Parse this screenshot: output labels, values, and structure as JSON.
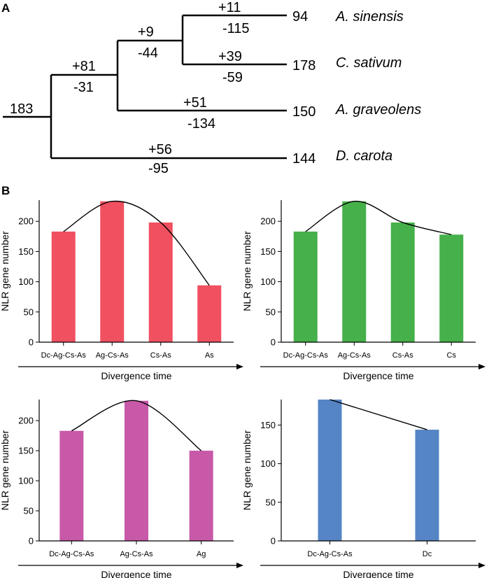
{
  "panel_labels": {
    "a": "A",
    "b": "B"
  },
  "tree": {
    "root_count": "183",
    "branch_ag_cs_as": {
      "gain": "+81",
      "loss": "-31"
    },
    "branch_cs_as": {
      "gain": "+9",
      "loss": "-44"
    },
    "leaves": [
      {
        "gain": "+11",
        "loss": "-115",
        "count": "94",
        "species": "A. sinensis"
      },
      {
        "gain": "+39",
        "loss": "-59",
        "count": "178",
        "species": "C. sativum"
      },
      {
        "gain": "+51",
        "loss": "-134",
        "count": "150",
        "species": "A. graveolens"
      },
      {
        "gain": "+56",
        "loss": "-95",
        "count": "144",
        "species": "D. carota"
      }
    ]
  },
  "colors": {
    "as": "#f05060",
    "cs": "#46b04a",
    "ag": "#c858a8",
    "dc": "#5585c5",
    "line": "#000000"
  },
  "chart_data": [
    {
      "type": "bar",
      "categories": [
        "Dc-Ag-Cs-As",
        "Ag-Cs-As",
        "Cs-As",
        "As"
      ],
      "values": [
        183,
        233,
        198,
        94
      ],
      "ylabel": "NLR gene number",
      "xlabel": "Divergence time",
      "ylim": [
        0,
        235
      ],
      "yticks": [
        0,
        50,
        100,
        150,
        200
      ],
      "color_key": "as",
      "trend_line": "smooth"
    },
    {
      "type": "bar",
      "categories": [
        "Dc-Ag-Cs-As",
        "Ag-Cs-As",
        "Cs-As",
        "Cs"
      ],
      "values": [
        183,
        233,
        198,
        178
      ],
      "ylabel": "NLR gene number",
      "xlabel": "Divergence time",
      "ylim": [
        0,
        235
      ],
      "yticks": [
        0,
        50,
        100,
        150,
        200
      ],
      "color_key": "cs",
      "trend_line": "smooth"
    },
    {
      "type": "bar",
      "categories": [
        "Dc-Ag-Cs-As",
        "Ag-Cs-As",
        "Ag"
      ],
      "values": [
        183,
        233,
        150
      ],
      "ylabel": "NLR gene number",
      "xlabel": "Divergence time",
      "ylim": [
        0,
        235
      ],
      "yticks": [
        0,
        50,
        100,
        150,
        200
      ],
      "color_key": "ag",
      "trend_line": "smooth"
    },
    {
      "type": "bar",
      "categories": [
        "Dc-Ag-Cs-As",
        "Dc"
      ],
      "values": [
        183,
        144
      ],
      "ylabel": "NLR gene number",
      "xlabel": "Divergence time",
      "ylim": [
        0,
        183
      ],
      "yticks": [
        0,
        50,
        100,
        150
      ],
      "color_key": "dc",
      "trend_line": "straight"
    }
  ]
}
